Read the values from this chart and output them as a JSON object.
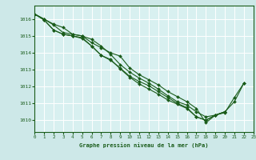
{
  "bg_color": "#cde8e8",
  "plot_bg_color": "#d8f0f0",
  "grid_color": "#ffffff",
  "line_color": "#1a5c1a",
  "marker_color": "#1a5c1a",
  "text_color": "#1a5c1a",
  "xlabel": "Graphe pression niveau de la mer (hPa)",
  "xlim": [
    0,
    23
  ],
  "ylim": [
    1009.3,
    1016.8
  ],
  "yticks": [
    1010,
    1011,
    1012,
    1013,
    1014,
    1015,
    1016
  ],
  "xticks": [
    0,
    1,
    2,
    3,
    4,
    5,
    6,
    7,
    8,
    9,
    10,
    11,
    12,
    13,
    14,
    15,
    16,
    17,
    18,
    19,
    20,
    21,
    22,
    23
  ],
  "series": [
    [
      1016.3,
      1016.0,
      1015.7,
      1015.5,
      1015.1,
      1015.0,
      1014.6,
      1014.3,
      1014.0,
      1013.8,
      1013.1,
      1012.7,
      1012.4,
      1012.1,
      1011.7,
      1011.4,
      1011.1,
      1010.7,
      1009.85,
      1010.3,
      1010.5,
      1011.1,
      1012.2,
      null
    ],
    [
      1016.3,
      1016.0,
      1015.65,
      1015.2,
      1015.1,
      1015.0,
      1014.8,
      1014.4,
      1013.9,
      1013.3,
      1012.85,
      1012.5,
      1012.2,
      1011.85,
      1011.45,
      1011.1,
      1010.9,
      1010.5,
      1010.2,
      1010.3,
      1010.45,
      1011.35,
      1012.2,
      null
    ],
    [
      1016.3,
      1015.95,
      1015.35,
      1015.1,
      1015.0,
      1014.9,
      1014.4,
      1013.85,
      1013.6,
      1013.05,
      1012.55,
      1012.15,
      1011.85,
      1011.55,
      1011.2,
      1010.95,
      1010.7,
      1010.2,
      1010.0,
      1010.3,
      1010.5,
      null,
      null,
      null
    ],
    [
      1016.3,
      1015.95,
      1015.35,
      1015.1,
      1015.0,
      1014.85,
      1014.4,
      1013.85,
      1013.55,
      1013.1,
      1012.6,
      1012.3,
      1012.05,
      1011.7,
      1011.35,
      1011.0,
      1010.75,
      1010.2,
      1010.0,
      1010.3,
      1010.5,
      null,
      null,
      null
    ]
  ]
}
